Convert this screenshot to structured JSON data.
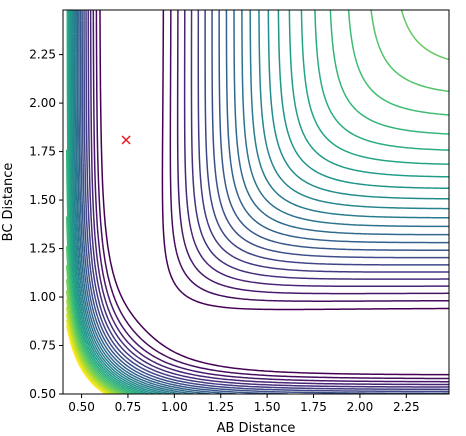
{
  "chart_data": {
    "type": "contour",
    "title": "",
    "xlabel": "AB Distance",
    "ylabel": "BC Distance",
    "xlim": [
      0.4,
      2.48
    ],
    "ylim": [
      0.5,
      2.48
    ],
    "x_ticks": [
      0.5,
      0.75,
      1.0,
      1.25,
      1.5,
      1.75,
      2.0,
      2.25
    ],
    "x_tick_labels": [
      "0.50",
      "0.75",
      "1.00",
      "1.25",
      "1.50",
      "1.75",
      "2.00",
      "2.25"
    ],
    "y_ticks": [
      0.5,
      0.75,
      1.0,
      1.25,
      1.5,
      1.75,
      2.0,
      2.25
    ],
    "y_tick_labels": [
      "0.50",
      "0.75",
      "1.00",
      "1.25",
      "1.50",
      "1.75",
      "2.00",
      "2.25"
    ],
    "colormap": "viridis",
    "marker": {
      "x": 0.74,
      "y": 1.81,
      "symbol": "x",
      "color": "#e8202a"
    },
    "grid": false,
    "legend": "none"
  }
}
